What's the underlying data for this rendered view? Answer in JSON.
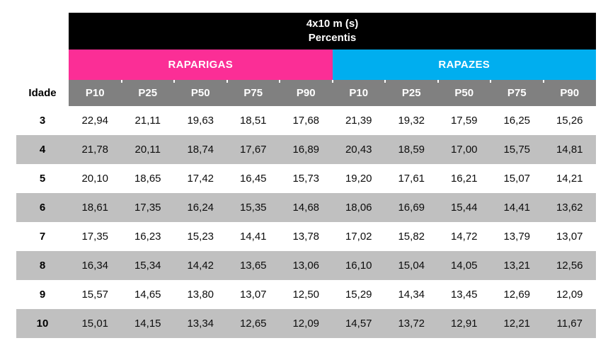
{
  "chart_data": {
    "type": "table",
    "title": "4x10 m (s)",
    "subtitle": "Percentis",
    "row_header": "Idade",
    "column_groups": [
      {
        "label": "RAPARIGAS",
        "color": "#FB2E96"
      },
      {
        "label": "RAPAZES",
        "color": "#00AEEF"
      }
    ],
    "columns": [
      "P10",
      "P25",
      "P50",
      "P75",
      "P90",
      "P10",
      "P25",
      "P50",
      "P75",
      "P90"
    ],
    "rows": [
      {
        "age": "3",
        "raparigas": [
          "22,94",
          "21,11",
          "19,63",
          "18,51",
          "17,68"
        ],
        "rapazes": [
          "21,39",
          "19,32",
          "17,59",
          "16,25",
          "15,26"
        ]
      },
      {
        "age": "4",
        "raparigas": [
          "21,78",
          "20,11",
          "18,74",
          "17,67",
          "16,89"
        ],
        "rapazes": [
          "20,43",
          "18,59",
          "17,00",
          "15,75",
          "14,81"
        ]
      },
      {
        "age": "5",
        "raparigas": [
          "20,10",
          "18,65",
          "17,42",
          "16,45",
          "15,73"
        ],
        "rapazes": [
          "19,20",
          "17,61",
          "16,21",
          "15,07",
          "14,21"
        ]
      },
      {
        "age": "6",
        "raparigas": [
          "18,61",
          "17,35",
          "16,24",
          "15,35",
          "14,68"
        ],
        "rapazes": [
          "18,06",
          "16,69",
          "15,44",
          "14,41",
          "13,62"
        ]
      },
      {
        "age": "7",
        "raparigas": [
          "17,35",
          "16,23",
          "15,23",
          "14,41",
          "13,78"
        ],
        "rapazes": [
          "17,02",
          "15,82",
          "14,72",
          "13,79",
          "13,07"
        ]
      },
      {
        "age": "8",
        "raparigas": [
          "16,34",
          "15,34",
          "14,42",
          "13,65",
          "13,06"
        ],
        "rapazes": [
          "16,10",
          "15,04",
          "14,05",
          "13,21",
          "12,56"
        ]
      },
      {
        "age": "9",
        "raparigas": [
          "15,57",
          "14,65",
          "13,80",
          "13,07",
          "12,50"
        ],
        "rapazes": [
          "15,29",
          "14,34",
          "13,45",
          "12,69",
          "12,09"
        ]
      },
      {
        "age": "10",
        "raparigas": [
          "15,01",
          "14,15",
          "13,34",
          "12,65",
          "12,09"
        ],
        "rapazes": [
          "14,57",
          "13,72",
          "12,91",
          "12,21",
          "11,67"
        ]
      }
    ],
    "colors": {
      "title_bg": "#000000",
      "girls_bg": "#FB2E96",
      "boys_bg": "#00AEEF",
      "percentile_header_bg": "#808080",
      "stripe_bg": "#C0C0C0",
      "header_text": "#FFFFFF",
      "body_text": "#000000"
    },
    "layout": {
      "legend_position": "none",
      "grid": "off",
      "stripe_rows": "even-ages"
    }
  }
}
